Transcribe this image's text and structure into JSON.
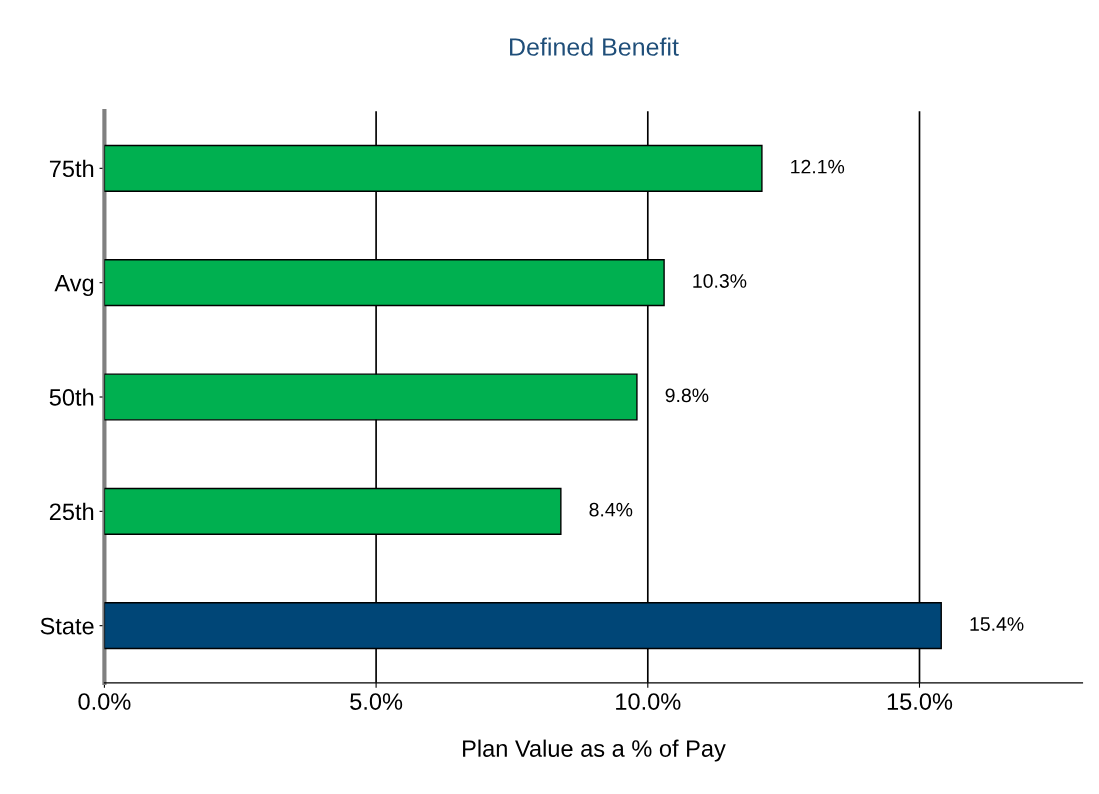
{
  "chart_data": {
    "type": "bar",
    "orientation": "horizontal",
    "title": "Defined Benefit",
    "xlabel": "Plan Value as a % of Pay",
    "categories": [
      "75th",
      "Avg",
      "50th",
      "25th",
      "State"
    ],
    "values": [
      12.1,
      10.3,
      9.8,
      8.4,
      15.4
    ],
    "colors": [
      "#00b050",
      "#00b050",
      "#00b050",
      "#00b050",
      "#004677"
    ],
    "value_labels": [
      "12.1%",
      "10.3%",
      "9.8%",
      "8.4%",
      "15.4%"
    ],
    "xlim": [
      0,
      18
    ],
    "xticks": [
      {
        "value": 0,
        "label": "0.0%"
      },
      {
        "value": 5,
        "label": "5.0%"
      },
      {
        "value": 10,
        "label": "10.0%"
      },
      {
        "value": 15,
        "label": "15.0%"
      }
    ],
    "grid": "x"
  }
}
